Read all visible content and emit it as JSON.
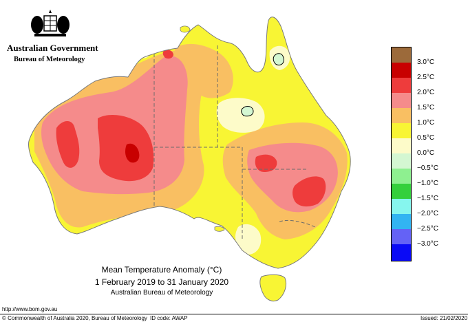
{
  "header": {
    "government": "Australian Government",
    "bureau": "Bureau of Meteorology"
  },
  "legend": {
    "items": [
      {
        "label": "",
        "color": "#9c6a3a"
      },
      {
        "label": "3.0°C",
        "color": "#c80000"
      },
      {
        "label": "2.5°C",
        "color": "#ee3c3c"
      },
      {
        "label": "2.0°C",
        "color": "#f58b8b"
      },
      {
        "label": "1.5°C",
        "color": "#f9bf62"
      },
      {
        "label": "1.0°C",
        "color": "#f8f534"
      },
      {
        "label": "0.5°C",
        "color": "#fdfbc9"
      },
      {
        "label": "0.0°C",
        "color": "#d4f7d2"
      },
      {
        "label": "−0.5°C",
        "color": "#8ef090"
      },
      {
        "label": "−1.0°C",
        "color": "#34d03c"
      },
      {
        "label": "−1.5°C",
        "color": "#86f6ee"
      },
      {
        "label": "−2.0°C",
        "color": "#32b4f2"
      },
      {
        "label": "−2.5°C",
        "color": "#6462f6"
      },
      {
        "label": "−3.0°C",
        "color": "#0a0af6"
      }
    ]
  },
  "title": {
    "line1": "Mean Temperature Anomaly (°C)",
    "line2": "1 February 2019 to 31 January 2020",
    "line3": "Australian Bureau of Meteorology"
  },
  "footer": {
    "url": "http://www.bom.gov.au",
    "copyright": "© Commonwealth of Australia 2020, Bureau of Meteorology",
    "id_code": "ID code: AWAP",
    "issued": "Issued: 21/02/2020"
  }
}
